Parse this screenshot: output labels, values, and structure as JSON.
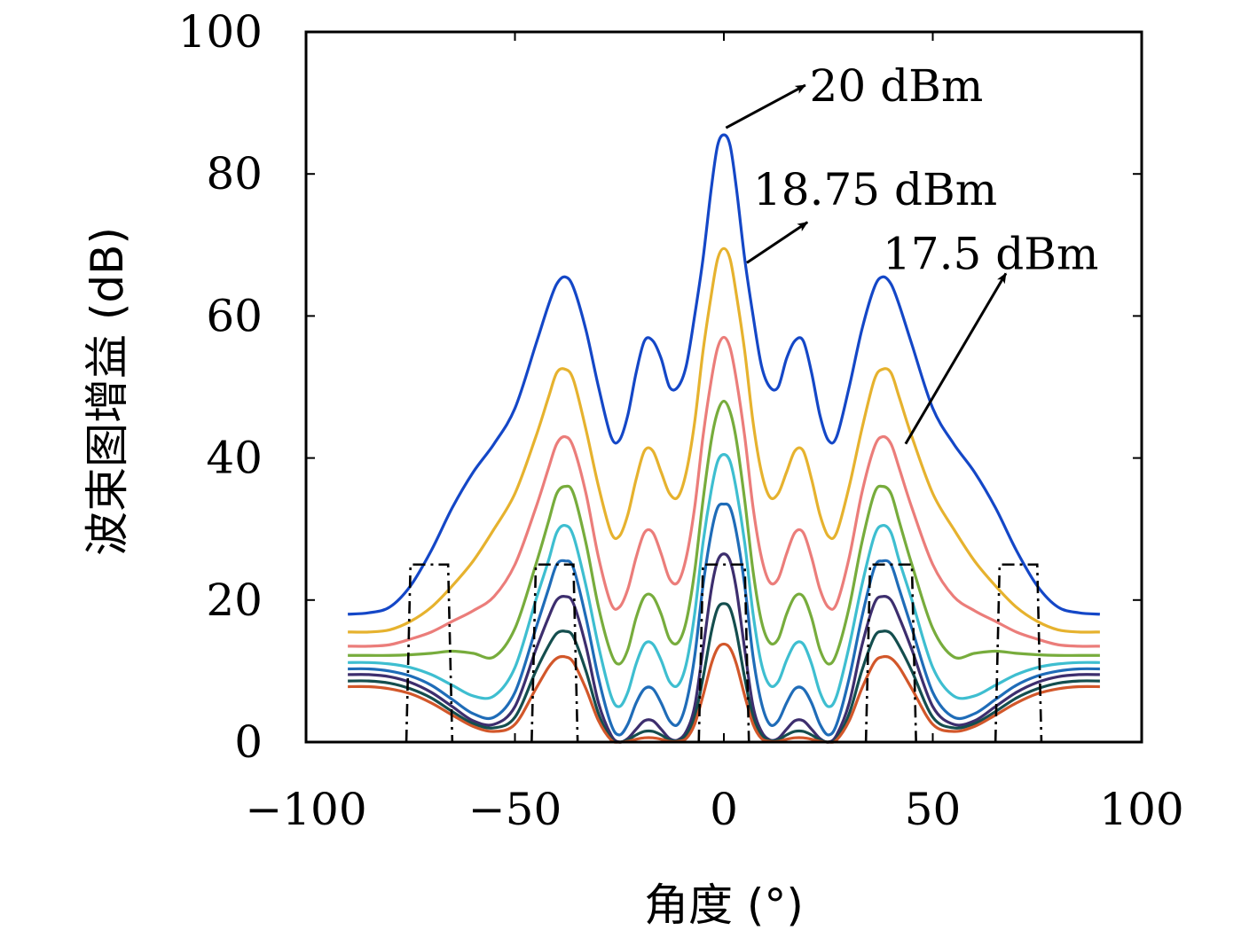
{
  "chart_data": {
    "type": "line",
    "title": "",
    "xlabel": "角度 (°)",
    "ylabel": "波束图增益 (dB)",
    "xlim": [
      -100,
      100
    ],
    "ylim": [
      0,
      100
    ],
    "xticks": [
      -100,
      -50,
      0,
      50,
      100
    ],
    "xtick_labels": [
      "−100",
      "−50",
      "0",
      "50",
      "100"
    ],
    "yticks": [
      0,
      20,
      40,
      60,
      80,
      100
    ],
    "ytick_labels": [
      "0",
      "20",
      "40",
      "60",
      "80",
      "100"
    ],
    "grid": false,
    "x": [
      -90,
      -85,
      -80,
      -75,
      -70,
      -65,
      -60,
      -55,
      -50,
      -45,
      -42,
      -40,
      -38,
      -36,
      -33,
      -30,
      -27,
      -25,
      -23,
      -21,
      -19,
      -17,
      -15,
      -13,
      -11,
      -9,
      -7,
      -5,
      -3,
      -1.5,
      0,
      1.5,
      3,
      5,
      7,
      9,
      11,
      13,
      15,
      17,
      19,
      21,
      23,
      25,
      27,
      30,
      33,
      36,
      38,
      40,
      42,
      45,
      50,
      55,
      60,
      65,
      70,
      75,
      80,
      85,
      90
    ],
    "series": [
      {
        "color": "#1447c7",
        "values": [
          18,
          18.2,
          19,
          22,
          27,
          33,
          38,
          42,
          47,
          56,
          61.5,
          64.5,
          65.5,
          64,
          58,
          50,
          43,
          42.5,
          46,
          52,
          56.5,
          56.5,
          54,
          50,
          50,
          53,
          60,
          68,
          78,
          84,
          85.5,
          84,
          78,
          68,
          60,
          53,
          50,
          50,
          54,
          56.5,
          56.5,
          52,
          46,
          42.5,
          43,
          50,
          58,
          64,
          65.5,
          64.5,
          61.5,
          56,
          47,
          42,
          38,
          33,
          27,
          22,
          19,
          18.2,
          18
        ]
      },
      {
        "color": "#e6b22e",
        "values": [
          15.5,
          15.5,
          15.8,
          17,
          19,
          22,
          25.5,
          30,
          35,
          43,
          48.5,
          52,
          52.5,
          51,
          44,
          36,
          29.5,
          29,
          32,
          37,
          41,
          41,
          38,
          35,
          34.5,
          38,
          45,
          55,
          63,
          68,
          69.5,
          68,
          63,
          55,
          45,
          38,
          34.5,
          35,
          38,
          41,
          41,
          37,
          32,
          29,
          29.5,
          36,
          44,
          51,
          52.5,
          52,
          48.5,
          43,
          35,
          30,
          25.5,
          22,
          19,
          17,
          15.8,
          15.5,
          15.5
        ]
      },
      {
        "color": "#eb7d7a",
        "values": [
          13.5,
          13.5,
          13.7,
          14.5,
          15.5,
          17,
          18.5,
          20.5,
          25,
          33,
          38.5,
          42,
          43,
          41.5,
          35,
          26,
          19.5,
          19,
          21.5,
          26,
          29.5,
          29.5,
          26.5,
          23,
          22.5,
          26,
          33,
          43,
          51,
          55.5,
          57,
          55.5,
          51,
          43,
          33,
          26,
          22.5,
          23,
          26.5,
          29.5,
          29.5,
          26,
          21.5,
          19,
          19.5,
          26,
          35,
          41.5,
          43,
          42,
          38.5,
          33,
          25,
          20.5,
          18.5,
          17,
          15.5,
          14.5,
          13.7,
          13.5,
          13.5
        ]
      },
      {
        "color": "#77ac3c",
        "values": [
          12.2,
          12.2,
          12.2,
          12.3,
          12.5,
          12.8,
          12.5,
          12,
          16,
          25,
          31,
          35,
          36,
          35,
          28,
          19,
          12.5,
          11,
          13,
          17.5,
          20.5,
          20.5,
          18,
          14.5,
          14,
          17,
          24,
          34,
          42.5,
          46.5,
          48,
          46.5,
          42.5,
          34,
          24,
          17,
          14,
          14.5,
          18,
          20.5,
          20.5,
          17.5,
          13,
          11,
          12.5,
          19,
          28,
          35,
          36,
          35,
          31,
          25,
          16,
          12,
          12.5,
          12.8,
          12.5,
          12.3,
          12.2,
          12.2,
          12.2
        ]
      },
      {
        "color": "#3ebed0",
        "values": [
          11.2,
          11.2,
          11,
          10.5,
          9.5,
          8,
          6.5,
          6.5,
          10.5,
          20,
          25.5,
          29.5,
          30.5,
          29,
          22,
          13.5,
          6.5,
          5,
          7,
          11,
          13.8,
          13.8,
          11.5,
          8.5,
          8,
          11,
          18,
          28,
          35.5,
          39.5,
          40.5,
          39.5,
          35.5,
          28,
          18,
          11,
          8,
          8.5,
          11.5,
          13.8,
          13.8,
          11,
          7,
          5,
          6.5,
          13.5,
          22,
          29,
          30.5,
          29.5,
          25.5,
          20,
          10.5,
          6.5,
          6.5,
          8,
          9.5,
          10.5,
          11,
          11.2,
          11.2
        ]
      },
      {
        "color": "#1f6cb8",
        "values": [
          10.3,
          10.3,
          10,
          9.3,
          8,
          6,
          4,
          3.5,
          7,
          16,
          21.5,
          25,
          25.5,
          24.5,
          17.5,
          9,
          2.5,
          1,
          2.5,
          5.5,
          7.5,
          7.5,
          5.5,
          3,
          2.5,
          5.5,
          12,
          22,
          29.5,
          33,
          33.5,
          33,
          29.5,
          22,
          12,
          5.5,
          2.5,
          3,
          5.5,
          7.5,
          7.5,
          5.5,
          2.5,
          1,
          2.5,
          9,
          17.5,
          24.5,
          25.5,
          25,
          21.5,
          16,
          7,
          3.5,
          4,
          6,
          8,
          9.3,
          10,
          10.3,
          10.3
        ]
      },
      {
        "color": "#3d2e6e",
        "values": [
          9.5,
          9.5,
          9.2,
          8.4,
          7,
          5,
          3,
          2.5,
          5,
          13,
          17.5,
          20,
          20.5,
          19.5,
          13.5,
          5.5,
          1,
          0,
          0.5,
          1.8,
          3,
          3,
          1.8,
          0.5,
          0.3,
          1.5,
          5,
          13,
          21.5,
          25.5,
          26.5,
          25.5,
          21.5,
          13,
          5,
          1.5,
          0.3,
          0.5,
          1.8,
          3,
          3,
          1.8,
          0.5,
          0,
          1,
          5.5,
          13.5,
          19.5,
          20.5,
          20,
          17.5,
          13,
          5,
          2.5,
          3,
          5,
          7,
          8.4,
          9.2,
          9.5,
          9.5
        ]
      },
      {
        "color": "#144e4e",
        "values": [
          8.6,
          8.6,
          8.3,
          7.5,
          6.2,
          4.3,
          2.6,
          2,
          3.5,
          10,
          13.5,
          15.3,
          15.6,
          14.8,
          10,
          4,
          0.5,
          0,
          0.3,
          1,
          1.5,
          1.5,
          1,
          0.3,
          0.2,
          1,
          3.5,
          9,
          15.5,
          18.8,
          19.5,
          18.8,
          15.5,
          9,
          3.5,
          1,
          0.2,
          0.3,
          1,
          1.5,
          1.5,
          1,
          0.3,
          0,
          0.5,
          4,
          10,
          14.8,
          15.6,
          15.3,
          13.5,
          10,
          3.5,
          2,
          2.6,
          4.3,
          6.2,
          7.5,
          8.3,
          8.6,
          8.6
        ]
      },
      {
        "color": "#d2572a",
        "values": [
          7.8,
          7.8,
          7.5,
          6.8,
          5.5,
          3.8,
          2.2,
          1.5,
          2.5,
          7.5,
          10.5,
          11.8,
          12,
          11.2,
          7.5,
          3,
          0.3,
          0,
          0.1,
          0.4,
          0.6,
          0.6,
          0.4,
          0.1,
          0.1,
          0.5,
          2.5,
          6.5,
          11,
          13.2,
          13.8,
          13.2,
          11,
          6.5,
          2.5,
          0.5,
          0.1,
          0.1,
          0.4,
          0.6,
          0.6,
          0.4,
          0.1,
          0,
          0.3,
          3,
          7.5,
          11.2,
          12,
          11.8,
          10.5,
          7.5,
          2.5,
          1.5,
          2.2,
          3.8,
          5.5,
          6.8,
          7.5,
          7.8,
          7.8
        ]
      }
    ],
    "mask_boxes": [
      {
        "x": [
          -76,
          -75,
          -66,
          -65
        ],
        "top": 25
      },
      {
        "x": [
          -46,
          -45,
          -36,
          -35
        ],
        "top": 25
      },
      {
        "x": [
          -6,
          -5,
          5,
          6
        ],
        "top": 25
      },
      {
        "x": [
          34,
          35,
          45,
          46
        ],
        "top": 25
      },
      {
        "x": [
          65,
          66,
          75,
          76
        ],
        "top": 25
      }
    ],
    "annotations": [
      {
        "text": "20 dBm",
        "label_x": 20.5,
        "label_y": 92.4,
        "arrow_from": [
          0.5,
          86.5
        ],
        "arrow_to": [
          19.5,
          92.5
        ]
      },
      {
        "text": "18.75 dBm",
        "label_x": 7,
        "label_y": 77.8,
        "arrow_from": [
          5.5,
          67.5
        ],
        "arrow_to": [
          20,
          73.2
        ]
      },
      {
        "text": "17.5 dBm",
        "label_x": 38,
        "label_y": 68.7,
        "arrow_from": [
          43.5,
          42
        ],
        "arrow_to": [
          67.5,
          66
        ]
      }
    ]
  }
}
